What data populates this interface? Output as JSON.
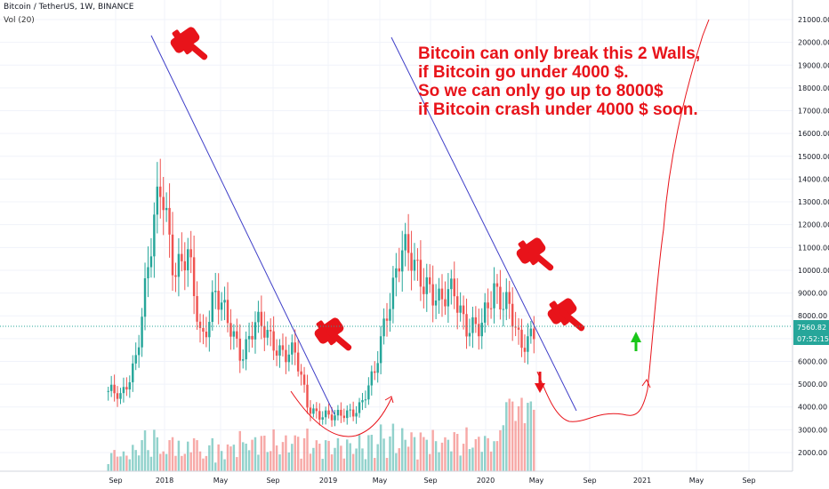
{
  "header": {
    "symbol": "Bitcoin / TetherUS, 1W, BINANCE",
    "vol": "Vol (20)"
  },
  "price_axis": {
    "ticks": [
      2000,
      3000,
      4000,
      5000,
      6000,
      7000,
      8000,
      9000,
      10000,
      11000,
      12000,
      13000,
      14000,
      15000,
      16000,
      17000,
      18000,
      19000,
      20000,
      21000
    ],
    "tick_labels": [
      "2000.00",
      "3000.00",
      "4000.00",
      "5000.00",
      "6000.00",
      "7000.00",
      "8000.00",
      "9000.00",
      "10000.00",
      "11000.00",
      "12000.00",
      "13000.00",
      "14000.00",
      "15000.00",
      "16000.00",
      "17000.00",
      "18000.00",
      "19000.00",
      "20000.00",
      "21000.00"
    ],
    "last_price": "7560.82",
    "countdown": "07:52:15"
  },
  "time_axis": {
    "labels": [
      "Sep",
      "2018",
      "May",
      "Sep",
      "2019",
      "May",
      "Sep",
      "2020",
      "May",
      "Sep",
      "2021",
      "May",
      "Sep"
    ]
  },
  "annotation": {
    "lines": [
      "Bitcoin can only break this 2 Walls,",
      "if Bitcoin go under 4000 $.",
      "So we can only go up to 8000$",
      "if Bitcoin crash under 4000 $ soon."
    ]
  },
  "colors": {
    "up": "#26a69a",
    "down": "#ef5350",
    "trendline": "#3f3fc8",
    "annotation": "#e8131a",
    "arrow_up": "#19c619",
    "arrow_down": "#e8131a",
    "last_price_bg": "#26a69a"
  },
  "chart_data": {
    "type": "candlestick",
    "title": "Bitcoin / TetherUS, 1W, BINANCE",
    "ylim": [
      1000,
      21500
    ],
    "x": [
      "Aug 2017",
      "Sep 2017",
      "Oct 2017",
      "Nov 2017",
      "Dec 2017",
      "Jan 2018",
      "Feb 2018",
      "Mar 2018",
      "Apr 2018",
      "May 2018",
      "Jun 2018",
      "Jul 2018",
      "Aug 2018",
      "Sep 2018",
      "Oct 2018",
      "Nov 2018",
      "Dec 2018",
      "Jan 2019",
      "Feb 2019",
      "Mar 2019",
      "Apr 2019",
      "May 2019",
      "Jun 2019",
      "Jul 2019",
      "Aug 2019",
      "Sep 2019",
      "Oct 2019",
      "Nov 2019",
      "Dec 2019",
      "Jan 2020",
      "Feb 2020",
      "Mar 2020",
      "Apr 2020"
    ],
    "close": [
      4700,
      4300,
      6100,
      10000,
      13800,
      10200,
      10400,
      6900,
      9200,
      7500,
      6400,
      7700,
      7000,
      6600,
      6300,
      4000,
      3750,
      3450,
      3800,
      4100,
      5300,
      8600,
      10800,
      10100,
      9600,
      8300,
      9200,
      7600,
      7200,
      9400,
      8600,
      6400,
      7560
    ]
  }
}
